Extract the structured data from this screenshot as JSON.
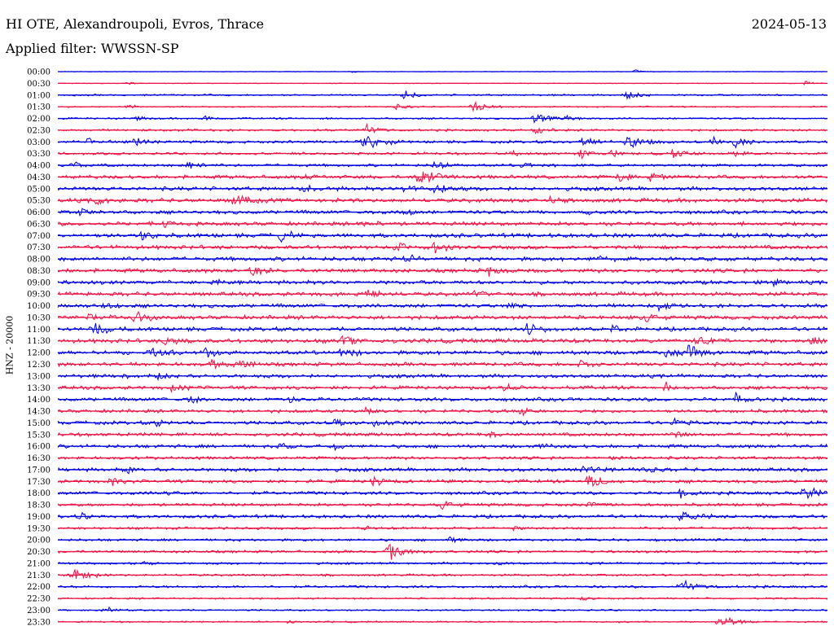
{
  "header": {
    "station": "HI OTE, Alexandroupoli, Evros, Thrace",
    "date": "2024-05-13",
    "filter": "Applied filter: WWSSN-SP"
  },
  "chart_data": {
    "type": "line",
    "title": "HI OTE, Alexandroupoli, Evros, Thrace",
    "ylabel": "HNZ - 20000",
    "xlabel": "",
    "legend": "none",
    "grid": false,
    "colors": [
      "#0000e6",
      "#f01446"
    ],
    "series_per_row_minutes": 30,
    "rows": [
      "00:00",
      "00:30",
      "01:00",
      "01:30",
      "02:00",
      "02:30",
      "03:00",
      "03:30",
      "04:00",
      "04:30",
      "05:00",
      "05:30",
      "06:00",
      "06:30",
      "07:00",
      "07:30",
      "08:00",
      "08:30",
      "09:00",
      "09:30",
      "10:00",
      "10:30",
      "11:00",
      "11:30",
      "12:00",
      "12:30",
      "13:00",
      "13:30",
      "14:00",
      "14:30",
      "15:00",
      "15:30",
      "16:00",
      "16:30",
      "17:00",
      "17:30",
      "18:00",
      "18:30",
      "19:00",
      "19:30",
      "20:00",
      "20:30",
      "21:00",
      "21:30",
      "22:00",
      "22:30",
      "23:00",
      "23:30"
    ],
    "noise_level": [
      0.4,
      0.5,
      1.3,
      1.0,
      1.3,
      1.6,
      2.0,
      1.8,
      2.0,
      2.6,
      2.8,
      3.0,
      2.7,
      2.8,
      3.0,
      2.9,
      3.0,
      2.9,
      2.8,
      2.9,
      2.8,
      2.9,
      2.9,
      3.0,
      3.0,
      2.8,
      2.6,
      2.6,
      2.7,
      2.4,
      2.6,
      2.5,
      2.5,
      2.2,
      2.6,
      2.4,
      2.4,
      2.2,
      2.4,
      1.8,
      1.8,
      1.9,
      1.6,
      1.6,
      1.8,
      1.3,
      1.2,
      1.1
    ],
    "bursts": [
      [
        [
          0.38,
          2
        ],
        [
          0.75,
          3
        ]
      ],
      [
        [
          0.09,
          3
        ],
        [
          0.97,
          4
        ]
      ],
      [
        [
          0.45,
          7
        ],
        [
          0.74,
          7
        ]
      ],
      [
        [
          0.09,
          4
        ],
        [
          0.44,
          5
        ],
        [
          0.54,
          9
        ]
      ],
      [
        [
          0.1,
          4
        ],
        [
          0.19,
          5
        ],
        [
          0.62,
          9
        ],
        [
          0.66,
          6
        ]
      ],
      [
        [
          0.4,
          8
        ],
        [
          0.62,
          6
        ]
      ],
      [
        [
          0.04,
          5
        ],
        [
          0.1,
          6
        ],
        [
          0.4,
          12
        ],
        [
          0.68,
          9
        ],
        [
          0.74,
          10
        ],
        [
          0.85,
          6
        ],
        [
          0.88,
          8
        ]
      ],
      [
        [
          0.59,
          5
        ],
        [
          0.68,
          6
        ],
        [
          0.72,
          5
        ],
        [
          0.8,
          6
        ],
        [
          0.88,
          5
        ]
      ],
      [
        [
          0.02,
          5
        ],
        [
          0.17,
          6
        ],
        [
          0.49,
          7
        ],
        [
          0.6,
          6
        ]
      ],
      [
        [
          0.32,
          4
        ],
        [
          0.47,
          12
        ],
        [
          0.73,
          6
        ],
        [
          0.77,
          5
        ]
      ],
      [
        [
          0.32,
          6
        ],
        [
          0.45,
          6
        ],
        [
          0.49,
          8
        ]
      ],
      [
        [
          0.05,
          6
        ],
        [
          0.23,
          9
        ],
        [
          0.64,
          5
        ]
      ],
      [
        [
          0.03,
          4
        ],
        [
          0.45,
          5
        ],
        [
          0.68,
          4
        ]
      ],
      [
        [
          0.14,
          6
        ],
        [
          0.4,
          5
        ]
      ],
      [
        [
          0.11,
          7
        ],
        [
          0.29,
          7
        ]
      ],
      [
        [
          0.44,
          6
        ],
        [
          0.49,
          9
        ]
      ],
      [
        [
          0.45,
          6
        ],
        [
          0.7,
          5
        ]
      ],
      [
        [
          0.25,
          8
        ],
        [
          0.56,
          7
        ]
      ],
      [
        [
          0.2,
          5
        ],
        [
          0.93,
          5
        ]
      ],
      [
        [
          0.4,
          8
        ],
        [
          0.54,
          5
        ]
      ],
      [
        [
          0.06,
          5
        ],
        [
          0.58,
          5
        ],
        [
          0.78,
          7
        ]
      ],
      [
        [
          0.04,
          5
        ],
        [
          0.1,
          8
        ],
        [
          0.76,
          6
        ]
      ],
      [
        [
          0.05,
          8
        ],
        [
          0.61,
          8
        ],
        [
          0.72,
          5
        ]
      ],
      [
        [
          0.14,
          7
        ],
        [
          0.37,
          7
        ],
        [
          0.83,
          6
        ],
        [
          0.98,
          7
        ]
      ],
      [
        [
          0.12,
          7
        ],
        [
          0.19,
          8
        ],
        [
          0.37,
          8
        ],
        [
          0.79,
          7
        ],
        [
          0.82,
          9
        ]
      ],
      [
        [
          0.2,
          6
        ],
        [
          0.23,
          7
        ],
        [
          0.68,
          6
        ]
      ],
      [
        [
          0.08,
          5
        ],
        [
          0.13,
          5
        ]
      ],
      [
        [
          0.15,
          6
        ],
        [
          0.58,
          5
        ],
        [
          0.79,
          6
        ]
      ],
      [
        [
          0.17,
          6
        ],
        [
          0.3,
          5
        ],
        [
          0.88,
          7
        ]
      ],
      [
        [
          0.4,
          5
        ],
        [
          0.6,
          6
        ]
      ],
      [
        [
          0.13,
          6
        ],
        [
          0.36,
          5
        ],
        [
          0.41,
          6
        ],
        [
          0.8,
          5
        ]
      ],
      [
        [
          0.56,
          5
        ],
        [
          0.8,
          6
        ]
      ],
      [
        [
          0.29,
          5
        ],
        [
          0.36,
          5
        ],
        [
          0.63,
          5
        ]
      ],
      [
        [
          0.72,
          4
        ]
      ],
      [
        [
          0.09,
          5
        ],
        [
          0.68,
          7
        ],
        [
          0.76,
          6
        ]
      ],
      [
        [
          0.07,
          6
        ],
        [
          0.41,
          6
        ],
        [
          0.69,
          9
        ]
      ],
      [
        [
          0.13,
          5
        ],
        [
          0.81,
          6
        ],
        [
          0.97,
          9
        ]
      ],
      [
        [
          0.5,
          5
        ],
        [
          0.69,
          5
        ]
      ],
      [
        [
          0.03,
          5
        ],
        [
          0.81,
          9
        ]
      ],
      [
        [
          0.4,
          4
        ],
        [
          0.59,
          3
        ]
      ],
      [
        [
          0.51,
          4
        ]
      ],
      [
        [
          0.43,
          11
        ]
      ],
      [
        [
          0.11,
          3
        ],
        [
          0.57,
          3
        ]
      ],
      [
        [
          0.02,
          11
        ]
      ],
      [
        [
          0.81,
          10
        ]
      ],
      [
        [
          0.68,
          3
        ]
      ],
      [
        [
          0.06,
          5
        ]
      ],
      [
        [
          0.3,
          3
        ],
        [
          0.86,
          11
        ]
      ]
    ]
  }
}
